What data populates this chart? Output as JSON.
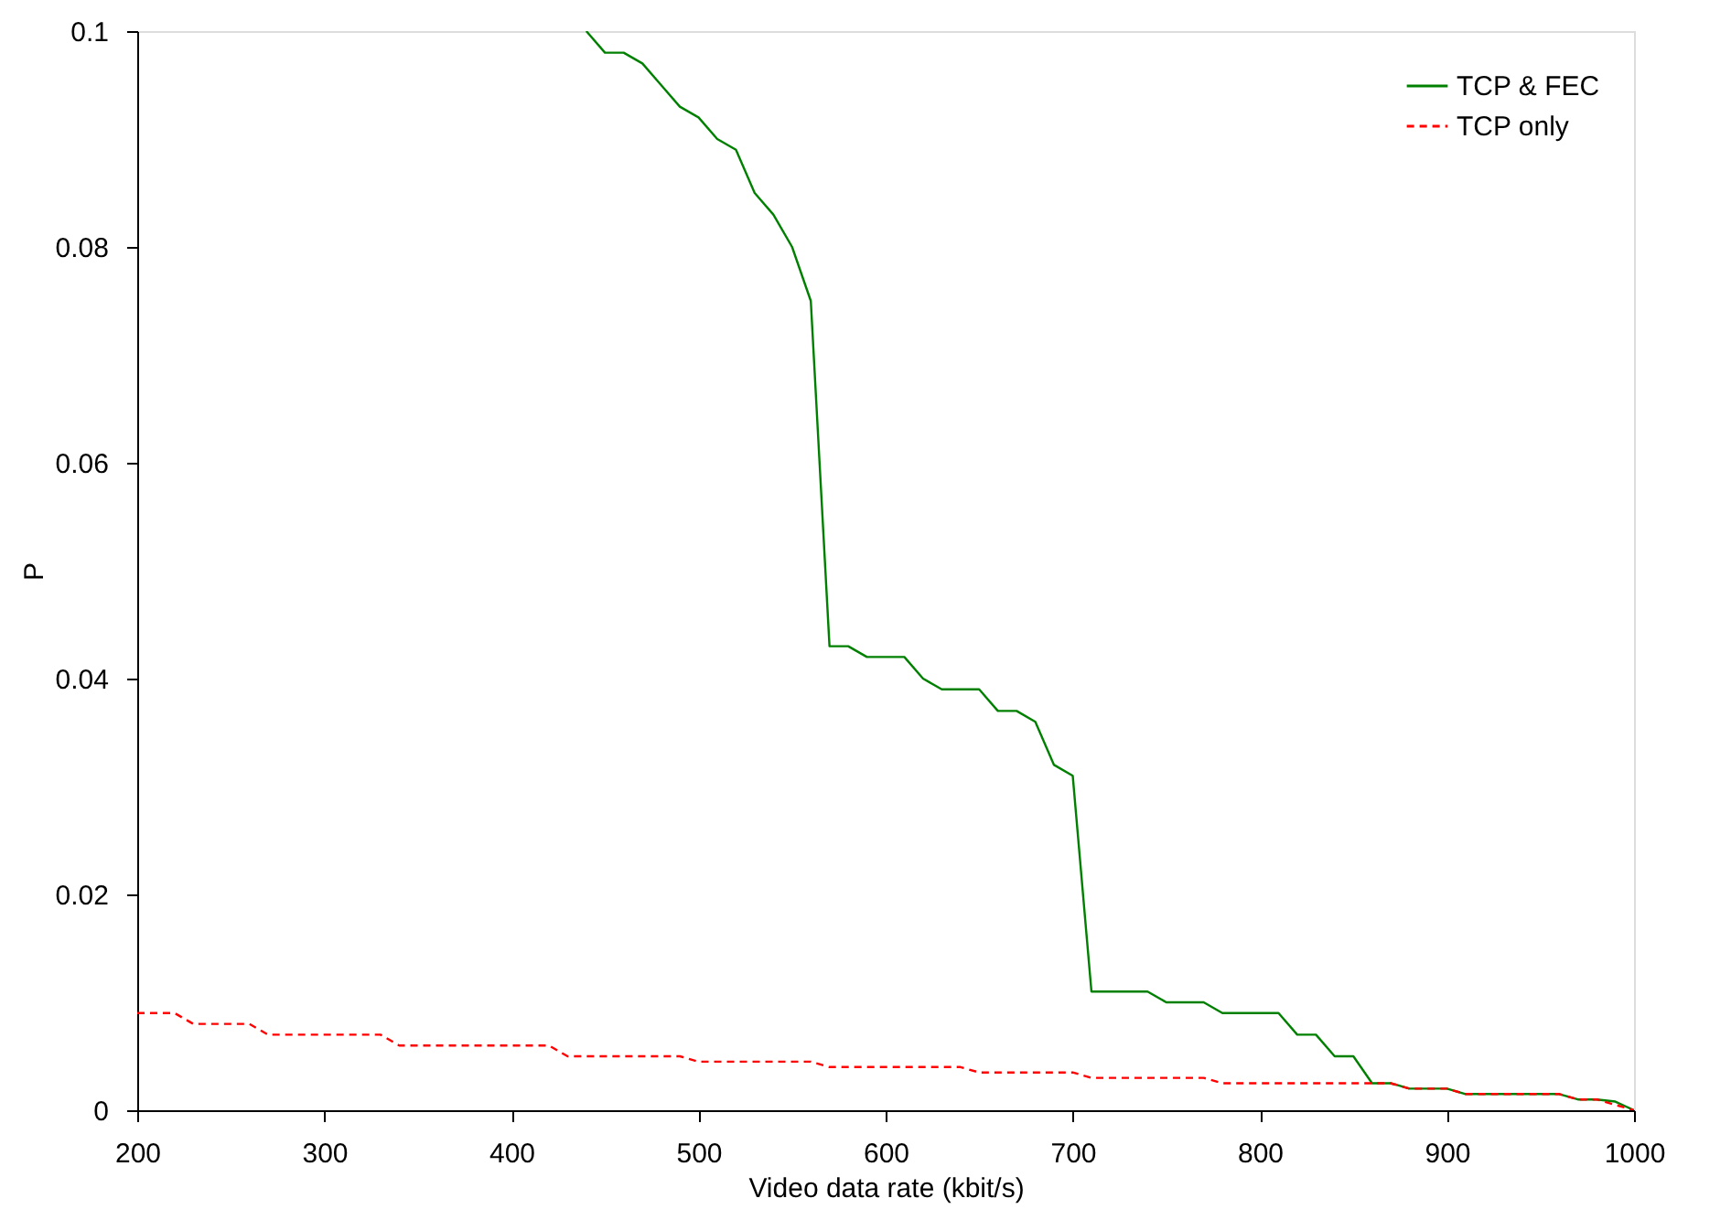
{
  "chart_data": {
    "type": "line",
    "xlabel": "Video data rate (kbit/s)",
    "ylabel": "P",
    "xlim": [
      200,
      1000
    ],
    "xticks": [
      200,
      300,
      400,
      500,
      600,
      700,
      800,
      900,
      1000
    ],
    "ylim": [
      0,
      0.1
    ],
    "yticks": [
      0,
      0.02,
      0.04,
      0.06,
      0.08,
      0.1
    ],
    "grid": false,
    "legend": "top right",
    "series": [
      {
        "name": "TCP & FEC",
        "color": "#008000",
        "line_style": "solid",
        "x": [
          440,
          450,
          460,
          470,
          480,
          490,
          500,
          510,
          520,
          530,
          540,
          550,
          560,
          570,
          580,
          590,
          600,
          610,
          620,
          630,
          640,
          650,
          660,
          670,
          680,
          690,
          700,
          710,
          720,
          730,
          740,
          750,
          760,
          770,
          780,
          790,
          800,
          810,
          820,
          830,
          840,
          850,
          860,
          870,
          880,
          890,
          900,
          910,
          920,
          930,
          940,
          950,
          960,
          970,
          980,
          990,
          1000
        ],
        "values": [
          0.1,
          0.098,
          0.098,
          0.097,
          0.095,
          0.093,
          0.092,
          0.09,
          0.089,
          0.085,
          0.083,
          0.08,
          0.075,
          0.043,
          0.043,
          0.042,
          0.042,
          0.042,
          0.04,
          0.039,
          0.039,
          0.039,
          0.037,
          0.037,
          0.036,
          0.032,
          0.031,
          0.011,
          0.011,
          0.011,
          0.011,
          0.01,
          0.01,
          0.01,
          0.009,
          0.009,
          0.009,
          0.009,
          0.007,
          0.007,
          0.005,
          0.005,
          0.0025,
          0.0025,
          0.002,
          0.002,
          0.002,
          0.0015,
          0.0015,
          0.0015,
          0.0015,
          0.0015,
          0.0015,
          0.001,
          0.001,
          0.0008,
          0
        ]
      },
      {
        "name": "TCP only",
        "color": "#ff0000",
        "line_style": "dashed",
        "x": [
          200,
          220,
          230,
          260,
          270,
          330,
          340,
          420,
          430,
          490,
          500,
          560,
          570,
          640,
          650,
          700,
          710,
          770,
          780,
          870,
          880,
          900,
          910,
          960,
          970,
          980,
          1000
        ],
        "values": [
          0.009,
          0.009,
          0.008,
          0.008,
          0.007,
          0.007,
          0.006,
          0.006,
          0.005,
          0.005,
          0.0045,
          0.0045,
          0.004,
          0.004,
          0.0035,
          0.0035,
          0.003,
          0.003,
          0.0025,
          0.0025,
          0.002,
          0.002,
          0.0015,
          0.0015,
          0.001,
          0.001,
          0
        ]
      }
    ]
  }
}
